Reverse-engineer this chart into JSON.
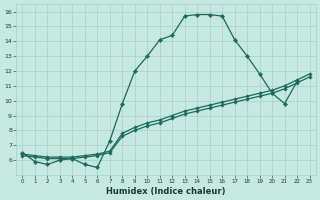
{
  "xlabel": "Humidex (Indice chaleur)",
  "bg_color": "#c5e8e0",
  "grid_color": "#a8cfc8",
  "line_color": "#1a6b5a",
  "xlim": [
    -0.5,
    23.5
  ],
  "ylim": [
    5,
    16.5
  ],
  "yticks": [
    6,
    7,
    8,
    9,
    10,
    11,
    12,
    13,
    14,
    15,
    16
  ],
  "xticks": [
    0,
    1,
    2,
    3,
    4,
    5,
    6,
    7,
    8,
    9,
    10,
    11,
    12,
    13,
    14,
    15,
    16,
    17,
    18,
    19,
    20,
    21,
    22,
    23
  ],
  "line1_x": [
    0,
    1,
    2,
    3,
    4,
    5,
    6,
    7,
    8,
    9,
    10,
    11,
    12,
    13,
    14,
    15,
    16,
    17,
    18,
    19,
    20,
    21,
    22
  ],
  "line1_y": [
    6.5,
    5.9,
    5.7,
    6.0,
    6.1,
    5.7,
    5.5,
    7.3,
    9.8,
    12.0,
    13.0,
    14.1,
    14.4,
    15.7,
    15.8,
    15.8,
    15.7,
    14.1,
    13.0,
    11.8,
    10.5,
    9.8,
    11.3
  ],
  "line2_x": [
    0,
    1,
    2,
    3,
    4,
    5,
    6,
    7,
    8,
    9,
    10,
    11,
    12,
    13,
    14,
    15,
    16,
    17,
    18,
    19,
    20,
    21,
    22,
    23
  ],
  "line2_y": [
    6.4,
    6.3,
    6.2,
    6.2,
    6.2,
    6.3,
    6.4,
    6.6,
    7.8,
    8.2,
    8.5,
    8.7,
    9.0,
    9.3,
    9.5,
    9.7,
    9.9,
    10.1,
    10.3,
    10.5,
    10.7,
    11.0,
    11.4,
    11.8
  ],
  "line3_x": [
    0,
    1,
    2,
    3,
    4,
    5,
    6,
    7,
    8,
    9,
    10,
    11,
    12,
    13,
    14,
    15,
    16,
    17,
    18,
    19,
    20,
    21,
    22,
    23
  ],
  "line3_y": [
    6.3,
    6.2,
    6.1,
    6.1,
    6.1,
    6.2,
    6.3,
    6.5,
    7.6,
    8.0,
    8.3,
    8.5,
    8.8,
    9.1,
    9.3,
    9.5,
    9.7,
    9.9,
    10.1,
    10.3,
    10.5,
    10.8,
    11.2,
    11.6
  ]
}
